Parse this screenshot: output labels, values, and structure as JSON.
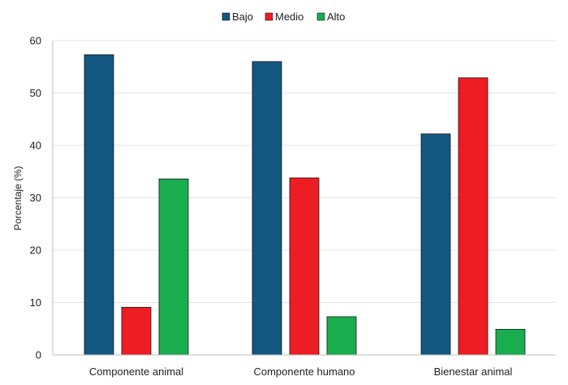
{
  "chart_data": {
    "type": "bar",
    "title": "",
    "xlabel": "",
    "ylabel": "Porcentaje (%)",
    "ylim": [
      0,
      60
    ],
    "yticks": [
      0,
      10,
      20,
      30,
      40,
      50,
      60
    ],
    "grid": true,
    "legend_position": "top-center",
    "categories": [
      "Componente animal",
      "Componente humano",
      "Bienestar animal"
    ],
    "series": [
      {
        "name": "Bajo",
        "color": "#125780",
        "values": [
          57.3,
          56.0,
          42.2
        ]
      },
      {
        "name": "Medio",
        "color": "#ee1c23",
        "values": [
          9.1,
          33.8,
          52.9
        ]
      },
      {
        "name": "Alto",
        "color": "#19ad4f",
        "values": [
          33.6,
          7.3,
          4.9
        ]
      }
    ]
  }
}
